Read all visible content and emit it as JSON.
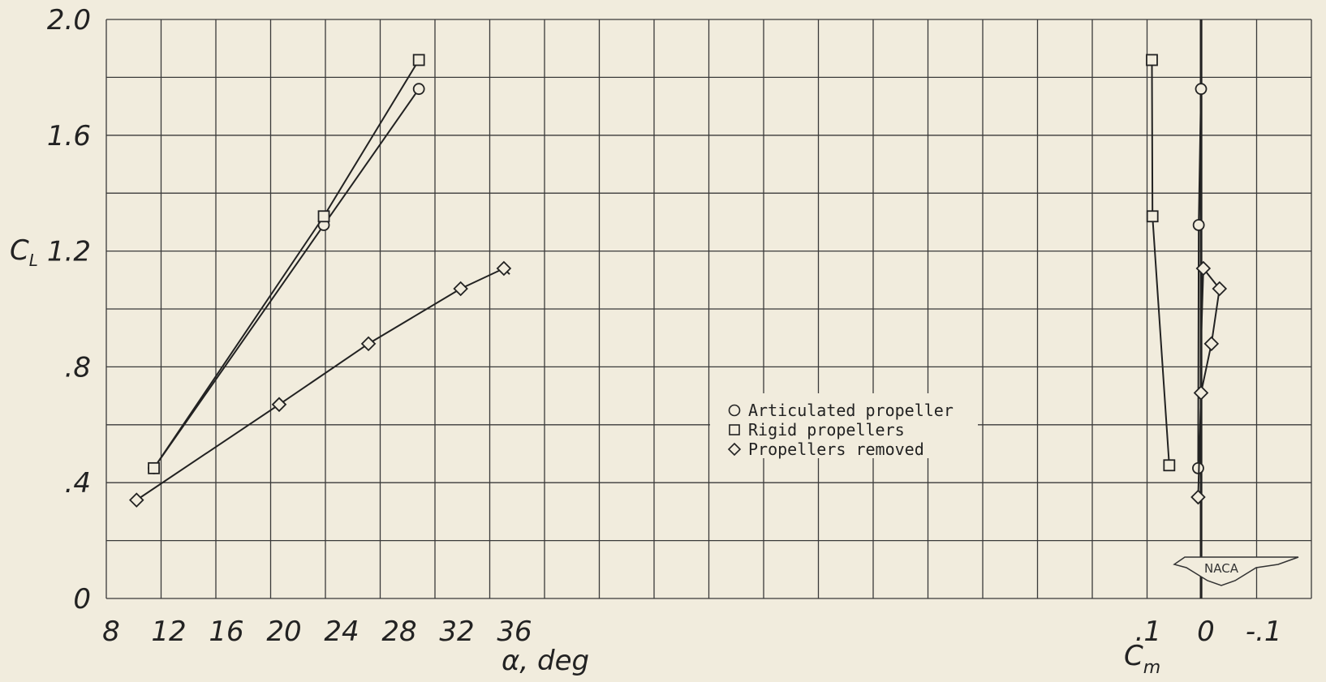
{
  "chart_data": [
    {
      "type": "line",
      "title": "",
      "xlabel": "α, deg",
      "ylabel": "C",
      "ylabel_sub": "L",
      "xlim": [
        8,
        40
      ],
      "ylim": [
        0,
        2.0
      ],
      "x_tick_labels": [
        "8",
        "12",
        "16",
        "20",
        "24",
        "28",
        "32",
        "36"
      ],
      "y_tick_labels": [
        "0",
        ".4",
        ".8",
        "1.2",
        "1.6",
        "2.0"
      ],
      "grid": true,
      "legend_position": "center",
      "series": [
        {
          "name": "Articulated propeller",
          "marker": "circle",
          "x": [
            11.3,
            23.1,
            29.7
          ],
          "y": [
            0.45,
            1.29,
            1.76
          ]
        },
        {
          "name": "Rigid propellers",
          "marker": "square",
          "x": [
            11.3,
            23.1,
            29.7
          ],
          "y": [
            0.45,
            1.32,
            1.86
          ]
        },
        {
          "name": "Propellers removed",
          "marker": "diamond",
          "x": [
            10.1,
            20.0,
            26.2,
            32.6,
            35.6,
            36.0
          ],
          "y": [
            0.34,
            0.67,
            0.88,
            1.07,
            1.14,
            1.12
          ]
        }
      ]
    },
    {
      "type": "line",
      "title": "",
      "xlabel": "C",
      "xlabel_sub": "m",
      "xlim": [
        0.2,
        -0.2
      ],
      "ylim": [
        0,
        2.0
      ],
      "x_tick_labels": [
        ".1",
        "0",
        "-.1"
      ],
      "grid": true,
      "series": [
        {
          "name": "Articulated propeller",
          "marker": "circle",
          "x": [
            0.005,
            0.004,
            0.0
          ],
          "y": [
            0.45,
            1.29,
            1.76
          ]
        },
        {
          "name": "Rigid propellers",
          "marker": "square",
          "x": [
            0.085,
            0.084,
            0.055
          ],
          "y": [
            1.86,
            1.32,
            0.46
          ]
        },
        {
          "name": "Propellers removed",
          "marker": "diamond",
          "x": [
            0.005,
            -0.0,
            -0.018,
            -0.032,
            -0.004,
            0.0
          ],
          "y": [
            0.35,
            0.71,
            0.88,
            1.07,
            1.14,
            0.88
          ]
        }
      ]
    }
  ],
  "logo": {
    "text": "NACA"
  }
}
